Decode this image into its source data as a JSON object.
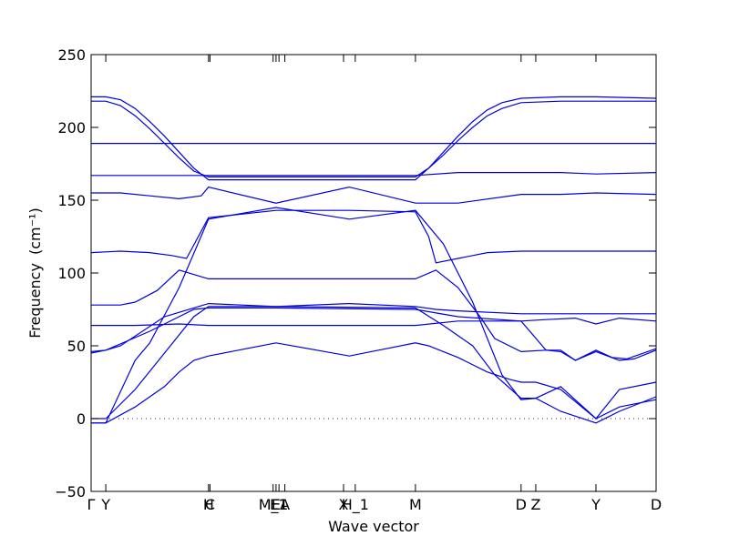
{
  "chart_data": {
    "type": "line",
    "title": "",
    "xlabel": "Wave vector",
    "ylabel": "Frequency",
    "ylabel_unit": "(cm⁻¹)",
    "ylim": [
      -50,
      250
    ],
    "yticks": [
      -50,
      0,
      50,
      100,
      150,
      200,
      250
    ],
    "xlim": [
      0,
      38.5
    ],
    "grid": false,
    "legend": "none",
    "line_color": "#0000dd",
    "zero_line_color": "#333333",
    "x_ticks": [
      {
        "label": "Γ",
        "x": 0
      },
      {
        "label": "Y",
        "x": 1
      },
      {
        "label": "H",
        "x": 8
      },
      {
        "label": "C",
        "x": 8.1
      },
      {
        "label": "M_1",
        "x": 12.4
      },
      {
        "label": "E",
        "x": 12.6
      },
      {
        "label": "E1",
        "x": 12.8
      },
      {
        "label": "A",
        "x": 13.2
      },
      {
        "label": "X",
        "x": 17.2
      },
      {
        "label": "H_1",
        "x": 18.0
      },
      {
        "label": "M",
        "x": 22.1
      },
      {
        "label": "D",
        "x": 29.3
      },
      {
        "label": "Z",
        "x": 30.3
      },
      {
        "label": "Y",
        "x": 34.4
      },
      {
        "label": "D",
        "x": 38.5
      }
    ],
    "series": [
      {
        "x": [
          0,
          1,
          3,
          5,
          6,
          7,
          8,
          12.6,
          17.6,
          22.1,
          23,
          25,
          27,
          28.5,
          29.3,
          30.3,
          32,
          34.4,
          36,
          38.5
        ],
        "values": [
          -3,
          -3,
          8,
          22,
          32,
          40,
          43,
          52,
          43,
          52,
          50,
          42,
          32,
          27,
          25,
          25,
          20,
          0,
          20,
          25
        ]
      },
      {
        "x": [
          0,
          1,
          3,
          5,
          7,
          8,
          12.6,
          22.1,
          24,
          26,
          27.5,
          29.3,
          30.3,
          32,
          34.4,
          36,
          38.5
        ],
        "values": [
          0,
          0,
          20,
          45,
          70,
          77,
          77,
          76,
          64,
          50,
          30,
          14,
          14,
          22,
          0,
          8,
          13
        ]
      },
      {
        "x": [
          0,
          1,
          3,
          4,
          6,
          8,
          12.6,
          17.6,
          22.1,
          24,
          26,
          28,
          29.3,
          30.3,
          32,
          34.4,
          36,
          38.5
        ],
        "values": [
          -3,
          -3,
          40,
          52,
          90,
          137,
          145,
          137,
          143,
          120,
          80,
          30,
          13,
          14,
          5,
          -3,
          5,
          15
        ]
      },
      {
        "x": [
          0,
          1,
          2,
          5,
          8,
          12.6,
          17.6,
          22.1,
          23.5,
          25,
          29.3,
          38.5
        ],
        "values": [
          45,
          47,
          50,
          70,
          79,
          77,
          79,
          77,
          75,
          74,
          72,
          72
        ]
      },
      {
        "x": [
          0,
          1,
          4,
          7,
          8,
          12.6,
          22.1,
          25,
          29.3,
          31,
          32,
          33,
          34.4,
          36,
          37,
          38.5
        ],
        "values": [
          46,
          47,
          60,
          75,
          76,
          76,
          75,
          70,
          67,
          47,
          46,
          40,
          46,
          40,
          41,
          47
        ]
      },
      {
        "x": [
          0,
          1,
          2,
          3,
          4.5,
          6,
          8,
          12.6,
          22.1,
          23.5,
          25,
          26.5,
          27.5,
          29.3,
          31,
          32,
          33,
          34.4,
          35.5,
          36.5,
          38.5
        ],
        "values": [
          78,
          78,
          78,
          80,
          88,
          102,
          96,
          96,
          96,
          102,
          90,
          70,
          55,
          46,
          47,
          47,
          40,
          47,
          42,
          41,
          48
        ]
      },
      {
        "x": [
          0,
          3,
          6,
          8,
          12.6,
          22.1,
          25,
          29.3,
          31,
          33,
          34.4,
          36,
          38.5
        ],
        "values": [
          64,
          64,
          65,
          64,
          64,
          64,
          67,
          67,
          68,
          69,
          65,
          69,
          67
        ]
      },
      {
        "x": [
          0,
          2,
          4,
          5.5,
          6.5,
          8,
          12.6,
          17.6,
          22.1,
          23,
          23.5,
          25,
          27,
          29.3,
          30.3,
          32,
          34.4,
          36,
          38.5
        ],
        "values": [
          114,
          115,
          114,
          112,
          110,
          138,
          143,
          143,
          142,
          125,
          107,
          110,
          114,
          115,
          115,
          115,
          115,
          115,
          115
        ]
      },
      {
        "x": [
          0,
          2,
          4,
          6,
          7.5,
          8,
          12.6,
          17.6,
          22.1,
          25,
          29.3,
          32,
          34.4,
          38.5
        ],
        "values": [
          155,
          155,
          153,
          151,
          153,
          159,
          148,
          159,
          148,
          148,
          154,
          154,
          155,
          154
        ]
      },
      {
        "x": [
          0,
          3,
          6,
          8,
          12.6,
          17.6,
          22.1,
          25,
          29.3,
          32,
          34.4,
          38.5
        ],
        "values": [
          167,
          167,
          167,
          167,
          167,
          167,
          167,
          169,
          169,
          169,
          168,
          169
        ]
      },
      {
        "x": [
          0,
          3,
          5,
          8,
          12.6,
          22.1,
          25,
          29.3,
          32,
          34.4,
          38.5
        ],
        "values": [
          189,
          189,
          189,
          189,
          189,
          189,
          189,
          189,
          189,
          189,
          189
        ]
      },
      {
        "x": [
          0,
          1,
          2,
          3,
          4,
          5,
          6,
          7,
          8,
          12.6,
          22.1,
          23,
          24,
          25,
          26,
          27,
          28,
          29.3,
          32,
          34.4,
          38.5
        ],
        "values": [
          221,
          221,
          219,
          213,
          204,
          194,
          183,
          172,
          164,
          164,
          164,
          172,
          183,
          194,
          204,
          212,
          217,
          220,
          221,
          221,
          220
        ]
      },
      {
        "x": [
          0,
          1,
          2,
          3,
          4,
          5,
          6,
          7,
          8,
          12.6,
          22.1,
          23,
          24,
          25,
          26,
          27,
          28,
          29.3,
          32,
          34.4,
          38.5
        ],
        "values": [
          218,
          218,
          215,
          208,
          199,
          189,
          179,
          170,
          166,
          166,
          166,
          172,
          181,
          191,
          200,
          208,
          213,
          217,
          218,
          218,
          218
        ]
      }
    ]
  }
}
